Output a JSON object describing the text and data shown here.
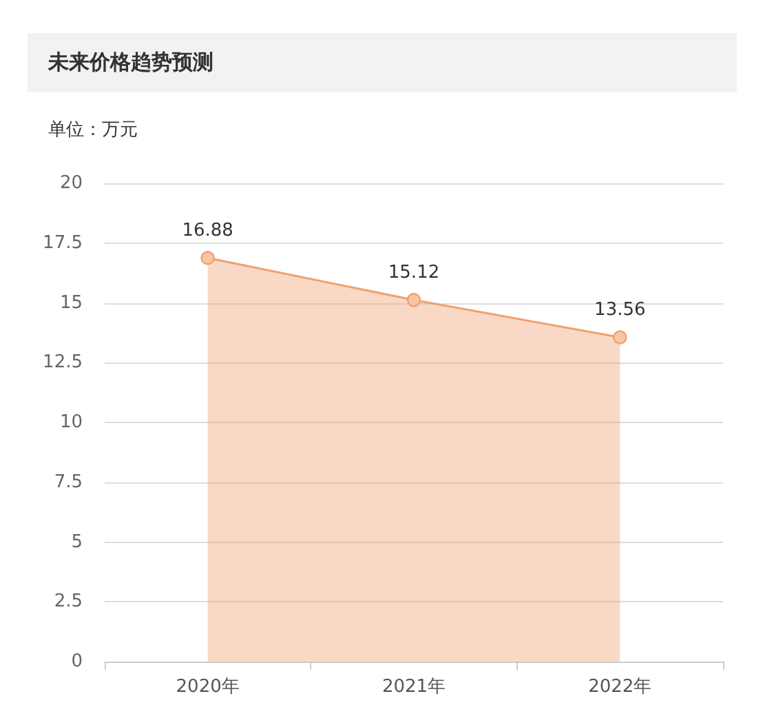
{
  "chart_data": {
    "type": "area",
    "title": "未来价格趋势预测",
    "ylabel": "单位：万元",
    "categories": [
      "2020年",
      "2021年",
      "2022年"
    ],
    "series": [
      {
        "color": "#f0a070",
        "values": [
          16.88,
          15.12,
          13.56
        ]
      }
    ],
    "ylim": [
      0,
      20
    ],
    "yticks": [
      0,
      2.5,
      5,
      7.5,
      10,
      12.5,
      15,
      17.5,
      20
    ],
    "grid": "y",
    "marker": "circle",
    "data_labels": true
  }
}
